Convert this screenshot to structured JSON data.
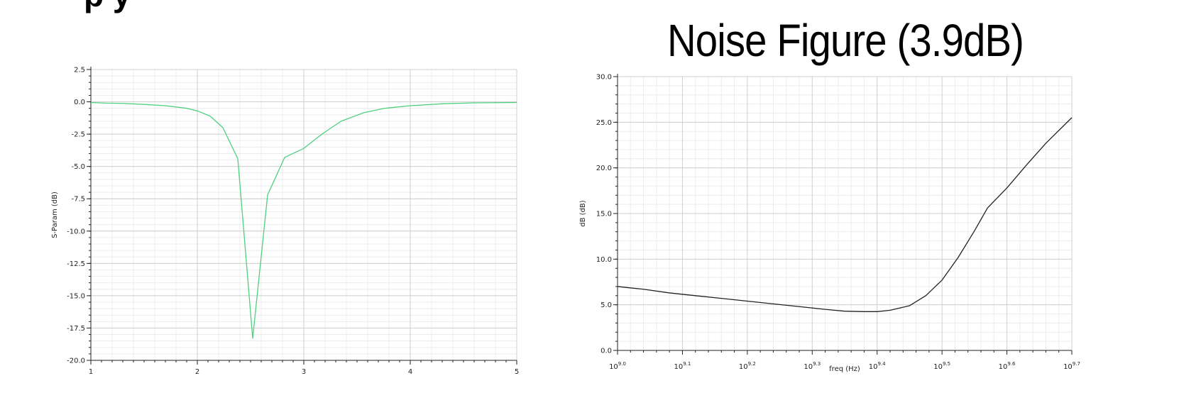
{
  "page": {
    "cropped_heading": "p                          y"
  },
  "chart_data": [
    {
      "type": "line",
      "title": "",
      "xlabel": "",
      "ylabel": "S-Param (dB)",
      "xlim": [
        1,
        5
      ],
      "ylim": [
        -20,
        2.5
      ],
      "x_ticks": [
        1,
        2,
        3,
        4,
        5
      ],
      "x_tick_labels": [
        "1",
        "2",
        "3",
        "4",
        "5"
      ],
      "y_ticks": [
        2.5,
        0,
        -2.5,
        -5,
        -7.5,
        -10,
        -12.5,
        -15,
        -17.5,
        -20
      ],
      "y_tick_labels": [
        "2.5",
        "0.0",
        "-2.5",
        "-5.0",
        "-7.5",
        "-10.0",
        "-12.5",
        "-15.0",
        "-17.5",
        "-20.0"
      ],
      "grid": true,
      "line_color": "#4fd07f",
      "series": [
        {
          "x": [
            1.0,
            1.15,
            1.3,
            1.5,
            1.7,
            1.9,
            2.0,
            2.12,
            2.24,
            2.38,
            2.52,
            2.66,
            2.82,
            3.0,
            3.17,
            3.35,
            3.56,
            3.76,
            4.0,
            4.3,
            4.6,
            5.0
          ],
          "y": [
            -0.05,
            -0.1,
            -0.12,
            -0.2,
            -0.3,
            -0.5,
            -0.7,
            -1.1,
            -2.0,
            -4.4,
            -18.3,
            -7.2,
            -4.3,
            -3.6,
            -2.5,
            -1.5,
            -0.85,
            -0.5,
            -0.3,
            -0.15,
            -0.08,
            -0.05
          ]
        }
      ]
    },
    {
      "type": "line",
      "title": "Noise  Figure (3.9dB)",
      "xlabel": "freq (Hz)",
      "ylabel": "dB (dB)",
      "x_scale": "log",
      "xlim": [
        1000000000,
        5011872336
      ],
      "ylim": [
        0,
        30
      ],
      "x_ticks": [
        1000000000,
        1258925412,
        1584893192,
        1995262315,
        2511886432,
        3162277660,
        3981071706,
        5011872336
      ],
      "x_tick_labels": [
        {
          "base": "10",
          "exp": "9.0"
        },
        {
          "base": "10",
          "exp": "9.1"
        },
        {
          "base": "10",
          "exp": "9.2"
        },
        {
          "base": "10",
          "exp": "9.3"
        },
        {
          "base": "10",
          "exp": "9.4"
        },
        {
          "base": "10",
          "exp": "9.5"
        },
        {
          "base": "10",
          "exp": "9.6"
        },
        {
          "base": "10",
          "exp": "9.7"
        }
      ],
      "y_ticks": [
        0,
        5,
        10,
        15,
        20,
        25,
        30
      ],
      "y_tick_labels": [
        "0.0",
        "5.0",
        "10.0",
        "15.0",
        "20.0",
        "25.0",
        "30.0"
      ],
      "grid": true,
      "line_color": "#222222",
      "series": [
        {
          "x": [
            1000000000,
            1096478196,
            1202264435,
            1318256739,
            1445439771,
            1584893192,
            1737800829,
            1905460718,
            2089296131,
            2238721139,
            2398832919,
            2511886432,
            2630267992,
            2818382931,
            2985382619,
            3162277660,
            3349654392,
            3548133892,
            3715352291,
            3981071706,
            4265795188,
            4570881896,
            5011872336
          ],
          "y": [
            7.0,
            6.7,
            6.3,
            6.0,
            5.7,
            5.4,
            5.1,
            4.8,
            4.5,
            4.3,
            4.25,
            4.25,
            4.4,
            4.9,
            6.0,
            7.7,
            10.2,
            13.1,
            15.6,
            17.8,
            20.3,
            22.7,
            25.5
          ]
        }
      ]
    }
  ]
}
